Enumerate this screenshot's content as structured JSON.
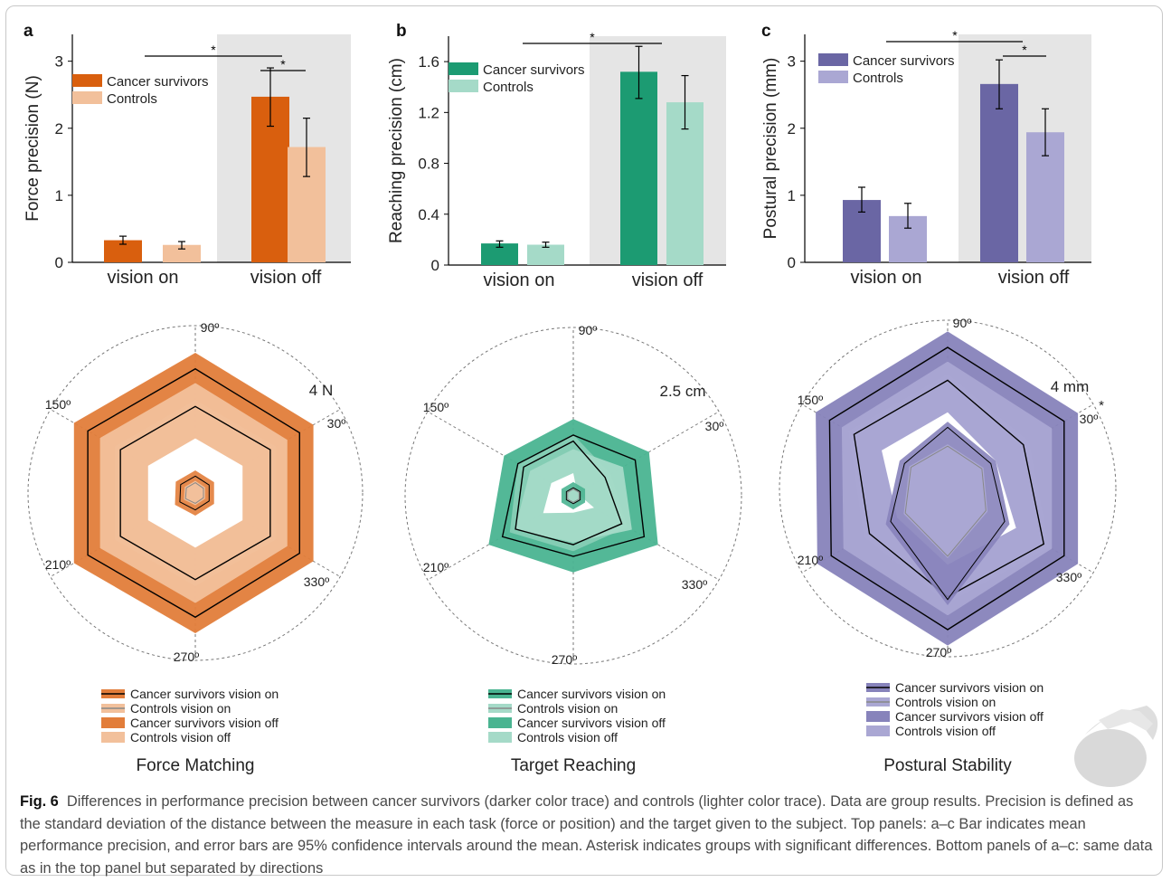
{
  "figure_label": "Fig. 6",
  "caption_text": "Differences in performance precision between cancer survivors (darker color trace) and controls (lighter color trace). Data are group results. Precision is defined as the standard deviation of the distance between the measure in each task (force or position) and the target given to the subject. Top panels: a–c Bar indicates mean performance precision, and error bars are 95% confidence intervals around the mean. Asterisk indicates groups with significant differences. Bottom panels of a–c: same data as in the top panel but separated by directions",
  "asterisk": "*",
  "colors": {
    "orange_dark": "#d95f0e",
    "orange_light": "#f2c09b",
    "orange_fill": "#e27d3a",
    "green_dark": "#1c9b72",
    "green_light": "#a5dac8",
    "green_fill": "#4ab491",
    "purple_dark": "#6a66a4",
    "purple_light": "#aaa7d3",
    "purple_fill": "#8783bb"
  },
  "panels": [
    {
      "letter": "a",
      "ylabel": "Force  precision (N)",
      "legend": [
        "Cancer survivors",
        "Controls"
      ],
      "group_labels": [
        "vision on",
        "vision off"
      ],
      "title": "Force Matching",
      "radar_scale": "4 N",
      "radar_legend": [
        "Cancer survivors vision on",
        "Controls vision on",
        "Cancer survivors vision off",
        "Controls vision off"
      ],
      "angle_labels": [
        "90º",
        "30º",
        "330º",
        "270º",
        "210º",
        "150º"
      ]
    },
    {
      "letter": "b",
      "ylabel": "Reaching precision (cm)",
      "legend": [
        "Cancer survivors",
        "Controls"
      ],
      "group_labels": [
        "vision on",
        "vision off"
      ],
      "title": "Target Reaching",
      "radar_scale": "2.5 cm",
      "radar_legend": [
        "Cancer survivors vision on",
        "Controls vision on",
        "Cancer survivors vision off",
        "Controls vision off"
      ],
      "angle_labels": [
        "90º",
        "30º",
        "330º",
        "270º",
        "210º",
        "150º"
      ]
    },
    {
      "letter": "c",
      "ylabel": "Postural precision (mm)",
      "legend": [
        "Cancer survivors",
        "Controls"
      ],
      "group_labels": [
        "vision on",
        "vision off"
      ],
      "title": "Postural Stability",
      "radar_scale": "4 mm",
      "radar_legend": [
        "Cancer survivors vision on",
        "Controls vision on",
        "Cancer survivors vision off",
        "Controls vision off"
      ],
      "angle_labels": [
        "90º",
        "30º",
        "330º",
        "270º",
        "210º",
        "150º"
      ]
    }
  ],
  "chart_data": [
    {
      "type": "bar",
      "panel": "a",
      "ylabel": "Force  precision (N)",
      "ylim": [
        0,
        3.4
      ],
      "yticks": [
        "0",
        "1",
        "2",
        "3"
      ],
      "categories": [
        "vision on",
        "vision off"
      ],
      "series": [
        {
          "name": "Cancer survivors",
          "values": [
            0.33,
            2.47
          ],
          "ci": [
            [
              0.27,
              0.39
            ],
            [
              2.03,
              2.9
            ]
          ]
        },
        {
          "name": "Controls",
          "values": [
            0.26,
            1.72
          ],
          "ci": [
            [
              0.2,
              0.31
            ],
            [
              1.28,
              2.15
            ]
          ]
        }
      ],
      "significance": [
        {
          "between": "vision on vs vision off (Cancer survivors)",
          "label": "*"
        },
        {
          "between": "Cancer survivors vs Controls, vision off",
          "label": "*"
        }
      ]
    },
    {
      "type": "bar",
      "panel": "b",
      "ylabel": "Reaching precision (cm)",
      "ylim": [
        0,
        1.8
      ],
      "yticks": [
        "0",
        "0.4",
        "0.8",
        "1.2",
        "1.6"
      ],
      "categories": [
        "vision on",
        "vision off"
      ],
      "series": [
        {
          "name": "Cancer survivors",
          "values": [
            0.17,
            1.52
          ],
          "ci": [
            [
              0.14,
              0.19
            ],
            [
              1.31,
              1.72
            ]
          ]
        },
        {
          "name": "Controls",
          "values": [
            0.16,
            1.28
          ],
          "ci": [
            [
              0.14,
              0.18
            ],
            [
              1.07,
              1.49
            ]
          ]
        }
      ],
      "significance": [
        {
          "between": "vision on vs vision off (Cancer survivors)",
          "label": "*"
        }
      ]
    },
    {
      "type": "bar",
      "panel": "c",
      "ylabel": "Postural precision (mm)",
      "ylim": [
        0,
        3.4
      ],
      "yticks": [
        "0",
        "1",
        "2",
        "3"
      ],
      "categories": [
        "vision on",
        "vision off"
      ],
      "series": [
        {
          "name": "Cancer survivors",
          "values": [
            0.93,
            2.66
          ],
          "ci": [
            [
              0.75,
              1.12
            ],
            [
              2.29,
              3.02
            ]
          ]
        },
        {
          "name": "Controls",
          "values": [
            0.69,
            1.94
          ],
          "ci": [
            [
              0.51,
              0.88
            ],
            [
              1.59,
              2.29
            ]
          ]
        }
      ],
      "significance": [
        {
          "between": "vision on vs vision off (Cancer survivors)",
          "label": "*"
        },
        {
          "between": "Cancer survivors vs Controls, vision off",
          "label": "*"
        }
      ]
    },
    {
      "type": "radar",
      "panel": "a",
      "title": "Force Matching",
      "angles": [
        90,
        30,
        330,
        270,
        210,
        150
      ],
      "scale_label": "4 N",
      "series": [
        {
          "name": "Cancer survivors vision on",
          "values": [
            0.36,
            0.34,
            0.34,
            0.36,
            0.38,
            0.36
          ]
        },
        {
          "name": "Controls vision on",
          "values": [
            0.22,
            0.2,
            0.2,
            0.22,
            0.24,
            0.22
          ]
        },
        {
          "name": "Cancer survivors vision off",
          "values": [
            2.64,
            2.56,
            2.56,
            2.64,
            2.64,
            2.64
          ]
        },
        {
          "name": "Controls vision off",
          "values": [
            1.84,
            1.84,
            1.84,
            1.84,
            1.84,
            1.84
          ]
        }
      ]
    },
    {
      "type": "radar",
      "panel": "b",
      "title": "Target Reaching",
      "angles": [
        90,
        30,
        330,
        270,
        210,
        150
      ],
      "scale_label": "2.5 cm",
      "series": [
        {
          "name": "Cancer survivors vision on",
          "values": [
            0.17,
            0.17,
            0.17,
            0.17,
            0.17,
            0.17
          ]
        },
        {
          "name": "Controls vision on",
          "values": [
            0.14,
            0.14,
            0.14,
            0.14,
            0.14,
            0.14
          ]
        },
        {
          "name": "Cancer survivors vision off",
          "values": [
            1.29,
            1.52,
            1.74,
            1.29,
            1.74,
            1.36
          ]
        },
        {
          "name": "Controls vision off",
          "values": [
            1.16,
            0.78,
            1.19,
            1.04,
            1.42,
            1.22
          ]
        }
      ]
    },
    {
      "type": "radar",
      "panel": "c",
      "title": "Postural Stability",
      "angles": [
        90,
        30,
        330,
        270,
        210,
        150
      ],
      "scale_label": "4 mm",
      "series": [
        {
          "name": "Cancer survivors vision on",
          "values": [
            1.3,
            1.06,
            1.4,
            2.36,
            1.4,
            1.06
          ]
        },
        {
          "name": "Controls vision on",
          "values": [
            0.9,
            0.84,
            0.94,
            1.44,
            1.04,
            0.9
          ]
        },
        {
          "name": "Cancer survivors vision off",
          "values": [
            3.0,
            2.86,
            2.86,
            3.0,
            2.86,
            2.9
          ]
        },
        {
          "name": "Controls vision off",
          "values": [
            2.3,
            1.86,
            2.36,
            2.3,
            1.92,
            2.3
          ]
        }
      ]
    }
  ]
}
